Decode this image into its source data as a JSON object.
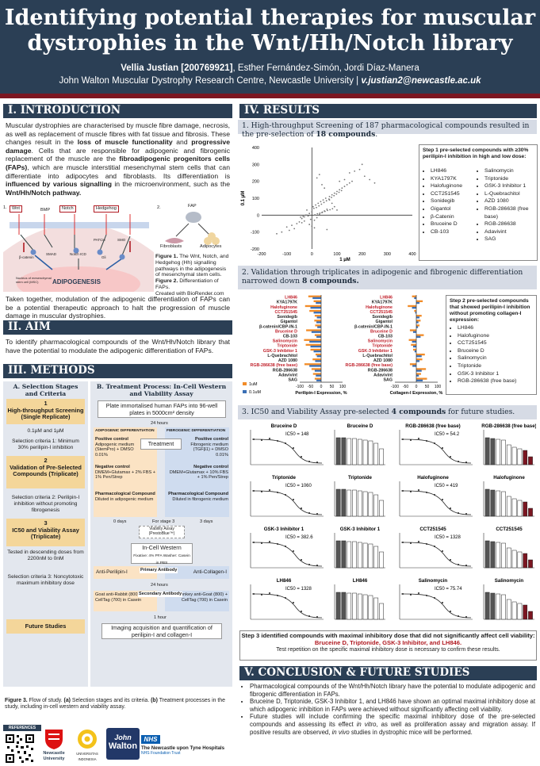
{
  "header": {
    "title_line1": "Identifying potential therapies for muscular",
    "title_line2": "dystrophies in the Wnt/Hh/Notch library",
    "author_main": "Vellia Justian [200769921]",
    "authors_rest": ", Esther Fernández-Simón, Jordi Díaz-Manera",
    "affiliation": "John Walton Muscular Dystrophy Research Centre, Newcastle University | ",
    "email": "v.justian2@newcastle.ac.uk"
  },
  "intro": {
    "title": "I. INTRODUCTION",
    "p1": "Muscular dystrophies are characterised by muscle fibre damage, necrosis, as well as replacement of muscle fibres with fat tissue and fibrosis. These changes result in the loss of muscle functionality and progressive damage. Cells that are responsible for adipogenic and fibrogenic replacement of the muscle are the fibroadipogenic progenitors cells (FAPs), which are muscle interstitial mesenchymal stem cells that can differentiate into adipocytes and fibroblasts. Its differentiation is influenced by various signalling in the microenvironment, such as the Wnt/Hh/Notch pathway.",
    "fig1_label": "1.",
    "fig2_label": "2.",
    "wnt": "Wnt",
    "bmp": "BMP",
    "notch": "Notch",
    "hedgehog": "Hedgehog",
    "patch": "PATCH",
    "smo": "SMO",
    "smad": "SMAD",
    "bcatenin": "β-catenin",
    "notch_icd": "Notch ICD",
    "gli": "Gli",
    "nucleus": "Nucleus of mesenchymal stem cell (MSC)",
    "adipogenesis": "ADIPOGENESIS",
    "fap": "FAP",
    "fibroblasts": "Fibroblasts",
    "adipocytes": "Adipocytes",
    "caption": "Figure 1. The Wnt, Notch, and Hedgehog (Hh) signalling pathways in the adipogenesis of mesenchymal stem cells. Figure 2. Differentiation of FAPs.",
    "credit": "Created with BioRender.com",
    "p2": "Taken together, modulation of the adipogenic differentiation of FAPs can be a potential therapeutic approach to halt the progression of muscle damage in muscular dystrophies."
  },
  "aim": {
    "title": "II. AIM",
    "p": "To identify pharmacological compounds of the Wnt/Hh/Notch library that have the potential to modulate the adipogenic differentiation of FAPs."
  },
  "methods": {
    "title": "III. METHODS",
    "a_title": "A. Selection Stages and Criteria",
    "b_title": "B. Treatment Process: In-Cell Western and Viability Assay",
    "s1_num": "1",
    "s1": "High-throughput Screening (Single Replicate)",
    "s1_dose": "0.1µM and 1µM",
    "c1": "Selection criteria 1: Minimum 30% perilipin-I inhibition",
    "s2_num": "2",
    "s2": "Validation of Pre-Selected Compounds (Triplicate)",
    "c2": "Selection criteria 2: Perilipin-I inhibition without promoting fibrogenesis",
    "s3_num": "3",
    "s3": "IC50 and Viability Assay (Triplicate)",
    "s3_dose": "Tested in descending doses from 2200nM to 0nM",
    "c3": "Selection criteria 3: Noncytotoxic maximum inhibitory dose",
    "future": "Future Studies",
    "plate": "Plate immortalised human FAPs into 96-well plates in 5000cm² density",
    "h24": "24 hours",
    "adipo_diff": "ADIPOGENIC DIFFERENTIATION",
    "fibro_diff": "FIBROGENIC DIFFERENTIATION",
    "treatment": "Treatment",
    "pos_adipo_t": "Positive control",
    "pos_adipo": "Adipogenic medium (StemPro) + DMSO 0.01%",
    "pos_fibro_t": "Positive control",
    "pos_fibro": "Fibrogenic medium (TGFβ1) + DMSO 0.01%",
    "neg_adipo_t": "Negative control",
    "neg_adipo": "DMEM+Glutamax + 2% FBS + 1% Pen/Strep",
    "neg_fibro_t": "Negative control",
    "neg_fibro": "DMEM+Glutamax + 10% FBS + 1% Pen/Strep",
    "pharm_adipo_t": "Pharmacological Compound",
    "pharm_adipo": "Diluted in adipogenic medium",
    "pharm_fibro_t": "Pharmacological Compound",
    "pharm_fibro": "Diluted in fibrogenic medium",
    "d0": "0 days",
    "d3": "3 days",
    "for_stage3": "For stage 3",
    "viability": "Viability Assay (PrestoBlue™)",
    "icw": "In-Cell Western",
    "icw_detail": "Fixative: 4% PFA  Washer: Casein in PBS",
    "anti_peri": "Anti-Perilipin-I",
    "primary": "Primary Antibody",
    "anti_coll": "Anti-Collagen-I",
    "h24b": "24 hours",
    "goat": "Goat anti-Rabbit (800) + CellTag (700) in Casein",
    "secondary": "Secondary Antibody",
    "donkey": "Donkey anti-Goat (800) + CellTag (700) in Casein",
    "h1": "1 hour",
    "imaging": "Imaging acquisition and quantification of perilipin-I and collagen-I",
    "caption": "Figure 3. Flow of study. (a) Selection stages and its criteria. (b) Treatment processes in the study, including in-cell western and viability assay."
  },
  "results": {
    "title": "IV. RESULTS",
    "r1_title": "1. High-throughput Screening of 187 pharmacological compounds resulted in the pre-selection of 18 compounds.",
    "step1_title": "Step 1 pre-selected compounds with ≥30% perilipin-I inhibition in high and low dose:",
    "step1_col1": [
      "LH846",
      "KYA1797K",
      "Halofuginone",
      "CCT251545",
      "Sonidegib",
      "Gigantol",
      "β-Catenin",
      "Bruceine D",
      "CB-103"
    ],
    "step1_col2": [
      "Salinomycin",
      "Triptonide",
      "GSK-3 Inhibitor 1",
      "L-Quebrachitol",
      "AZD 1080",
      "RGB-286638 (free base)",
      "RGB-286638",
      "Adavivint",
      "SAG"
    ],
    "r2_title": "2. Validation through triplicates in adipogenic and fibrogenic differentiation narrowed down 8 compounds.",
    "step2_title": "Step 2 pre-selected compounds that showed perilipin-I inhibition without promoting collagen-I expression:",
    "step2_list": [
      "LH846",
      "Halofuginone",
      "CCT251545",
      "Bruceine D",
      "Salinomycin",
      "Triptonide",
      "GSK-3 Inhibitor 1",
      "RGB-286638 (free base)"
    ],
    "r3_title": "3. IC50 and Viability Assay pre-selected 4 compounds for future studies.",
    "step3_title": "Step 3 identified compounds with maximal inhibitory dose that did not significantly affect cell viability:",
    "step3_compounds": "Bruceine D, Triptonide, GSK-3 Inhibitor, and LH846.",
    "step3_note": "Test repetition on the specific maximal inhibitory dose is necessary to confirm these results.",
    "legend_1um": "1uM",
    "legend_01um": "0.1uM",
    "xlabel_peri": "Perilipin-I Expression, %",
    "xlabel_coll": "Collagen-I Expression, %",
    "scatter_xlabel": "1 µM",
    "scatter_ylabel": "0.1 µM"
  },
  "chart_data": [
    {
      "type": "scatter",
      "xlabel": "1 µM",
      "ylabel": "0.1 µM",
      "xlim": [
        -200,
        400
      ],
      "ylim": [
        -200,
        400
      ],
      "xticks": [
        "-200",
        "-100",
        "0",
        "100",
        "200",
        "300",
        "400"
      ],
      "yticks": [
        "400",
        "300",
        "200",
        "100",
        "0",
        "-100",
        "-200"
      ],
      "points_x": [
        -40,
        -30,
        -20,
        -10,
        0,
        10,
        20,
        30,
        40,
        50,
        60,
        -50,
        -60,
        -20,
        5,
        15,
        25,
        35,
        45,
        55,
        70,
        80,
        90,
        100,
        110,
        120,
        130,
        140,
        150,
        160,
        -15,
        -5,
        8,
        18,
        28,
        38,
        48,
        58,
        68,
        78,
        88,
        98,
        108,
        118,
        -80,
        -100,
        -70,
        -90,
        -120,
        -140,
        20,
        30,
        40,
        50,
        -30,
        -40,
        -10,
        0,
        10,
        60,
        70,
        80,
        90,
        100,
        150,
        170,
        190,
        210,
        230,
        250,
        110,
        130,
        200,
        -25,
        -35,
        -45,
        12,
        22,
        32,
        42,
        52,
        62,
        72,
        82
      ],
      "points_y": [
        -20,
        -10,
        0,
        10,
        20,
        -30,
        -15,
        5,
        15,
        25,
        35,
        -40,
        -50,
        30,
        50,
        60,
        70,
        80,
        90,
        100,
        110,
        120,
        130,
        140,
        150,
        160,
        170,
        180,
        190,
        200,
        -5,
        -25,
        40,
        45,
        55,
        65,
        75,
        85,
        95,
        105,
        115,
        125,
        135,
        145,
        -60,
        -70,
        -80,
        -90,
        -100,
        -110,
        220,
        240,
        180,
        160,
        -35,
        -45,
        -55,
        -65,
        -75,
        -85,
        90,
        70,
        50,
        30,
        250,
        260,
        270,
        230,
        210,
        190,
        200,
        210,
        300,
        0,
        -8,
        -12,
        2,
        8,
        12,
        18,
        22,
        28,
        32,
        38
      ]
    },
    {
      "type": "bar",
      "orientation": "horizontal",
      "xlabel": "Perilipin-I Expression, %",
      "xlim": [
        -100,
        100
      ],
      "xticks": [
        "-100",
        "-50",
        "0",
        "50",
        "100"
      ],
      "categories": [
        "LH846",
        "KYA1797K",
        "Halofuginone",
        "CCT251545",
        "Sonidegib",
        "Gigantol",
        "β-catenin/CBP-IN-1",
        "Bruceine D",
        "CB-103",
        "Salinomycin",
        "Triptonide",
        "GSK-3 Inhibitor 1",
        "L-Quebrachitol",
        "AZD 1080",
        "RGB-286638 (free base)",
        "RGB-286638",
        "Adavivint",
        "SAG"
      ],
      "series": [
        {
          "name": "1uM",
          "values": [
            -60,
            -35,
            -75,
            -55,
            -30,
            -32,
            -28,
            -70,
            -30,
            -80,
            -72,
            -50,
            -26,
            -40,
            -78,
            -45,
            -38,
            -30
          ]
        },
        {
          "name": "0.1uM",
          "values": [
            -40,
            -25,
            -50,
            -35,
            -20,
            -22,
            -18,
            -45,
            -22,
            -55,
            -50,
            -35,
            -20,
            -28,
            -55,
            -30,
            -25,
            -22
          ]
        }
      ]
    },
    {
      "type": "bar",
      "orientation": "horizontal",
      "xlabel": "Collagen-I Expression, %",
      "xlim": [
        -100,
        100
      ],
      "xticks": [
        "-100",
        "-50",
        "0",
        "50",
        "100"
      ],
      "categories": [
        "LH846",
        "KYA1797K",
        "Halofuginone",
        "CCT251545",
        "Sonidegib",
        "Gigantol",
        "β-catenin/CBP-IN-1",
        "Bruceine D",
        "CB-103",
        "Salinomycin",
        "Triptonide",
        "GSK-3 Inhibitor 1",
        "L-Quebrachitol",
        "AZD 1080",
        "RGB-286638 (free base)",
        "RGB-286638",
        "Adavivint",
        "SAG"
      ],
      "series": [
        {
          "name": "1uM",
          "values": [
            -20,
            30,
            -40,
            -10,
            25,
            20,
            15,
            -30,
            35,
            -35,
            -25,
            -15,
            40,
            28,
            -30,
            45,
            22,
            50
          ]
        },
        {
          "name": "0.1uM",
          "values": [
            -10,
            15,
            -20,
            -5,
            15,
            10,
            8,
            -15,
            20,
            -20,
            -15,
            -8,
            25,
            15,
            -18,
            25,
            12,
            30
          ]
        }
      ]
    },
    {
      "type": "line",
      "panels": [
        {
          "name": "Bruceine D",
          "ic50": "IC50 = 148"
        },
        {
          "name": "RGB-286638 (free base)",
          "ic50": "IC50 = 54.2"
        },
        {
          "name": "Triptonide",
          "ic50": "IC50 = 1060"
        },
        {
          "name": "Halofuginone",
          "ic50": "IC50 = 419"
        },
        {
          "name": "GSK-3 Inhibitor 1",
          "ic50": "IC50 = 382.6"
        },
        {
          "name": "CCT251545",
          "ic50": "IC50 = 1328"
        },
        {
          "name": "LH846",
          "ic50": "IC50 = 1328"
        },
        {
          "name": "Salinomycin",
          "ic50": "IC50 = 75.74"
        }
      ]
    }
  ],
  "conclusion": {
    "title": "V. CONCLUSION & FUTURE STUDIES",
    "b1": "Pharmacological compounds of the Wnt/Hh/Notch library have the potential to modulate adipogenic and fibrogenic differentiation in FAPs.",
    "b2": "Bruceine D, Triptonide, GSK-3 Inhibitor 1, and LH846 have shown an optimal maximal inhibitory dose at which adipogenic inhibition in FAPs were achieved without significantly affecting cell viability.",
    "b3": "Future studies will include confirming the specific maximal inhibitory dose of the pre-selected compounds and assessing its effect in vitro, as well as proliferation assay and migration assay. If positive results are observed, in vivo studies in dystrophic mice will be performed."
  },
  "footer": {
    "references": "REFERENCES",
    "newcastle": "Newcastle University",
    "indonesia": "UNIVERSITAS INDONESIA",
    "john": "John",
    "walton": "Walton",
    "nhs": "NHS",
    "hospital": "The Newcastle upon Tyne Hospitals",
    "trust": "NHS Foundation Trust"
  }
}
